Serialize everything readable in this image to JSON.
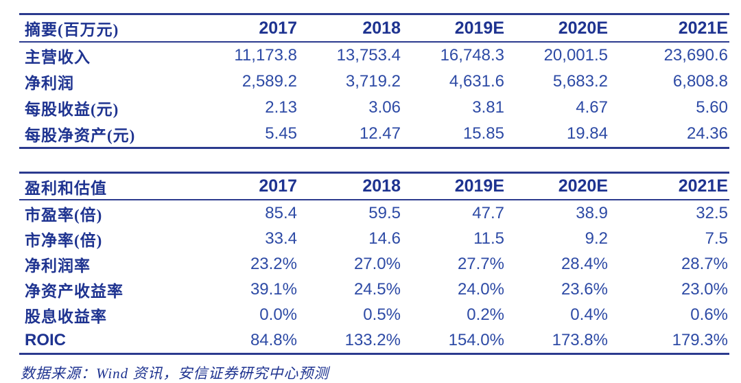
{
  "colors": {
    "rule_navy": "#2b3a8e",
    "label_navy": "#1e3390",
    "value_navy": "#2d4aa5",
    "background": "#ffffff"
  },
  "columns": [
    "2017",
    "2018",
    "2019E",
    "2020E",
    "2021E"
  ],
  "table1": {
    "title": "摘要(百万元)",
    "rows": [
      {
        "label": "主营收入",
        "values": [
          "11,173.8",
          "13,753.4",
          "16,748.3",
          "20,001.5",
          "23,690.6"
        ]
      },
      {
        "label": "净利润",
        "values": [
          "2,589.2",
          "3,719.2",
          "4,631.6",
          "5,683.2",
          "6,808.8"
        ]
      },
      {
        "label": "每股收益(元)",
        "values": [
          "2.13",
          "3.06",
          "3.81",
          "4.67",
          "5.60"
        ]
      },
      {
        "label": "每股净资产(元)",
        "values": [
          "5.45",
          "12.47",
          "15.85",
          "19.84",
          "24.36"
        ]
      }
    ]
  },
  "table2": {
    "title": "盈利和估值",
    "rows": [
      {
        "label": "市盈率(倍)",
        "values": [
          "85.4",
          "59.5",
          "47.7",
          "38.9",
          "32.5"
        ]
      },
      {
        "label": "市净率(倍)",
        "values": [
          "33.4",
          "14.6",
          "11.5",
          "9.2",
          "7.5"
        ]
      },
      {
        "label": "净利润率",
        "values": [
          "23.2%",
          "27.0%",
          "27.7%",
          "28.4%",
          "28.7%"
        ]
      },
      {
        "label": "净资产收益率",
        "values": [
          "39.1%",
          "24.5%",
          "24.0%",
          "23.6%",
          "23.0%"
        ]
      },
      {
        "label": "股息收益率",
        "values": [
          "0.0%",
          "0.5%",
          "0.2%",
          "0.4%",
          "0.6%"
        ]
      },
      {
        "label": "ROIC",
        "values": [
          "84.8%",
          "133.2%",
          "154.0%",
          "173.8%",
          "179.3%"
        ]
      }
    ]
  },
  "footer": {
    "source_text": "数据来源：Wind 资讯，安信证券研究中心预测"
  }
}
